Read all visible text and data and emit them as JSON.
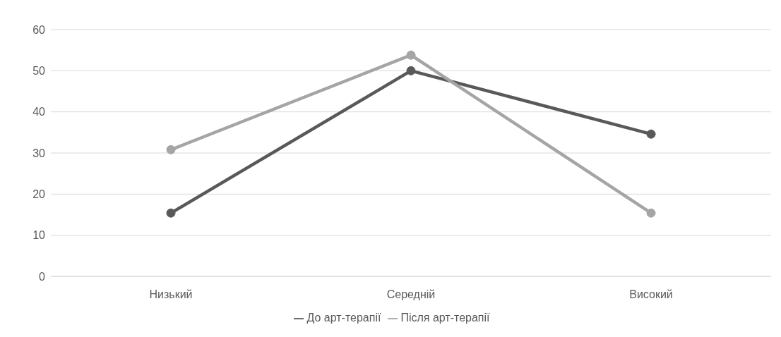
{
  "chart_data": {
    "type": "line",
    "categories": [
      "Низький",
      "Середній",
      "Високий"
    ],
    "series": [
      {
        "name": "До арт-терапії",
        "color": "#595959",
        "values": [
          15.4,
          50,
          34.6
        ]
      },
      {
        "name": "Після арт-терапії",
        "color": "#a5a5a5",
        "values": [
          30.8,
          53.8,
          15.4
        ]
      }
    ],
    "ylim": [
      0,
      60
    ],
    "yticks": [
      0,
      10,
      20,
      30,
      40,
      50,
      60
    ],
    "grid": "y",
    "legend": "bottom",
    "marker": "circle",
    "line_style": "solid"
  }
}
